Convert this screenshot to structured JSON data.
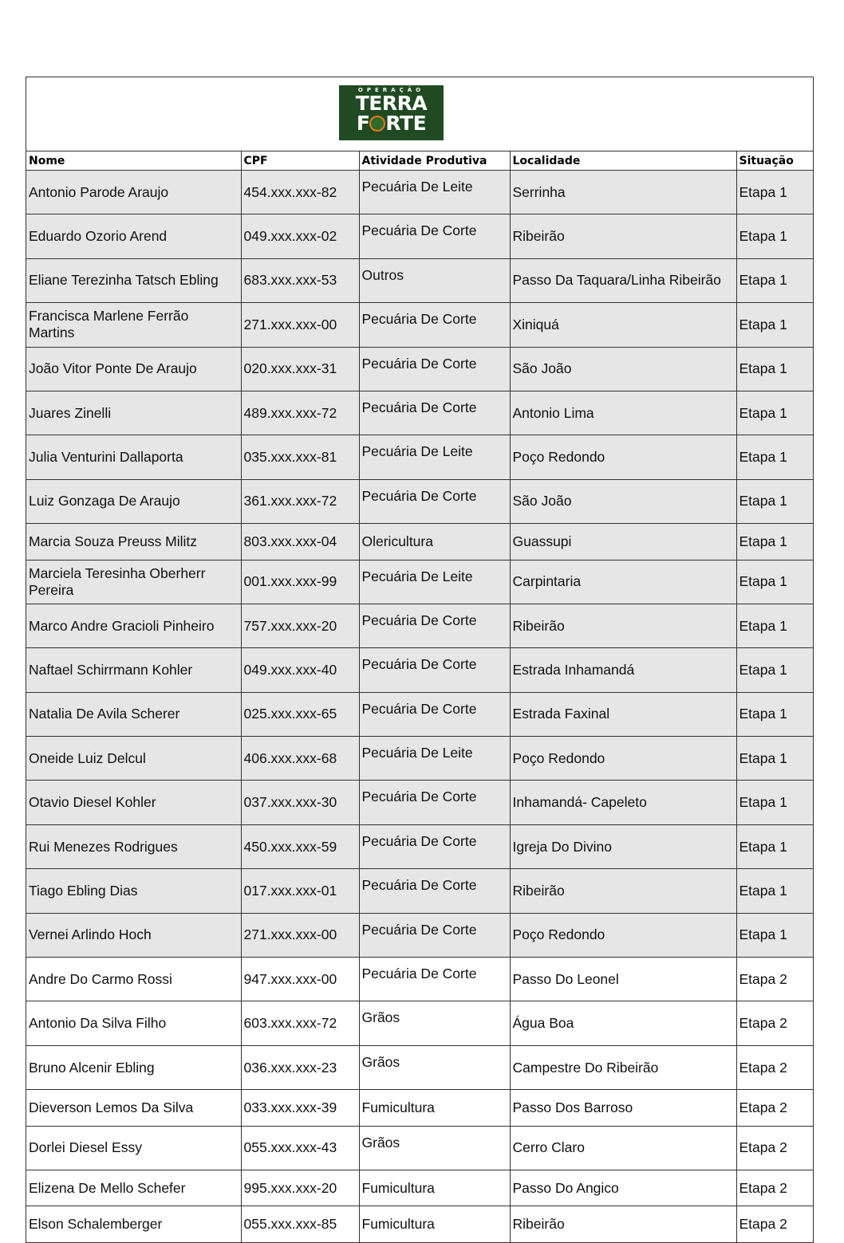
{
  "logo": {
    "line1": "OPERAÇÃO",
    "line2": "TERRA",
    "line3": "FORTE",
    "color": "#1f4a22"
  },
  "table": {
    "headers": [
      "Nome",
      "CPF",
      "Atividade Produtiva",
      "Localidade",
      "Situação"
    ],
    "rows": [
      [
        "Antonio Parode Araujo",
        "454.xxx.xxx-82",
        "Pecuária De Leite",
        "Serrinha",
        "Etapa 1"
      ],
      [
        "Eduardo Ozorio Arend",
        "049.xxx.xxx-02",
        "Pecuária De Corte",
        "Ribeirão",
        "Etapa 1"
      ],
      [
        "Eliane Terezinha Tatsch Ebling",
        "683.xxx.xxx-53",
        "Outros",
        "Passo Da Taquara/Linha Ribeirão",
        "Etapa 1"
      ],
      [
        "Francisca Marlene Ferrão Martins",
        "271.xxx.xxx-00",
        "Pecuária De Corte",
        "Xiniquá",
        "Etapa 1"
      ],
      [
        "João Vitor Ponte De Araujo",
        "020.xxx.xxx-31",
        "Pecuária De Corte",
        "São João",
        "Etapa 1"
      ],
      [
        "Juares Zinelli",
        "489.xxx.xxx-72",
        "Pecuária De Corte",
        "Antonio Lima",
        "Etapa 1"
      ],
      [
        "Julia Venturini Dallaporta",
        "035.xxx.xxx-81",
        "Pecuária De Leite",
        "Poço Redondo",
        "Etapa 1"
      ],
      [
        "Luiz Gonzaga De Araujo",
        "361.xxx.xxx-72",
        "Pecuária De Corte",
        "São João",
        "Etapa 1"
      ],
      [
        "Marcia  Souza Preuss Militz",
        "803.xxx.xxx-04",
        "Olericultura",
        "Guassupi",
        "Etapa 1"
      ],
      [
        "Marciela Teresinha Oberherr Pereira",
        "001.xxx.xxx-99",
        "Pecuária De Leite",
        "Carpintaria",
        "Etapa 1"
      ],
      [
        "Marco Andre Gracioli Pinheiro",
        "757.xxx.xxx-20",
        "Pecuária De Corte",
        "Ribeirão",
        "Etapa 1"
      ],
      [
        "Naftael Schirrmann Kohler",
        "049.xxx.xxx-40",
        "Pecuária De Corte",
        "Estrada Inhamandá",
        "Etapa 1"
      ],
      [
        "Natalia De Avila Scherer",
        "025.xxx.xxx-65",
        "Pecuária De Corte",
        "Estrada Faxinal",
        "Etapa 1"
      ],
      [
        "Oneide Luiz Delcul",
        "406.xxx.xxx-68",
        "Pecuária De Leite",
        "Poço Redondo",
        "Etapa 1"
      ],
      [
        "Otavio Diesel Kohler",
        "037.xxx.xxx-30",
        "Pecuária De Corte",
        "Inhamandá- Capeleto",
        "Etapa 1"
      ],
      [
        "Rui Menezes Rodrigues",
        "450.xxx.xxx-59",
        "Pecuária De Corte",
        "Igreja Do Divino",
        "Etapa 1"
      ],
      [
        "Tiago Ebling Dias",
        "017.xxx.xxx-01",
        "Pecuária De Corte",
        "Ribeirão",
        "Etapa 1"
      ],
      [
        "Vernei Arlindo Hoch",
        "271.xxx.xxx-00",
        "Pecuária De Corte",
        "Poço Redondo",
        "Etapa 1"
      ],
      [
        "Andre Do Carmo Rossi",
        "947.xxx.xxx-00",
        "Pecuária De Corte",
        "Passo Do Leonel",
        "Etapa 2"
      ],
      [
        "Antonio Da Silva Filho",
        "603.xxx.xxx-72",
        "Grãos",
        "Água Boa",
        "Etapa 2"
      ],
      [
        "Bruno Alcenir Ebling",
        "036.xxx.xxx-23",
        "Grãos",
        "Campestre Do Ribeirão",
        "Etapa 2"
      ],
      [
        "Dieverson Lemos Da Silva",
        "033.xxx.xxx-39",
        "Fumicultura",
        "Passo Dos Barroso",
        "Etapa 2"
      ],
      [
        "Dorlei Diesel Essy",
        "055.xxx.xxx-43",
        "Grãos",
        "Cerro Claro",
        "Etapa 2"
      ],
      [
        "Elizena De Mello Schefer",
        "995.xxx.xxx-20",
        "Fumicultura",
        "Passo Do Angico",
        "Etapa 2"
      ],
      [
        "Elson Schalemberger",
        "055.xxx.xxx-85",
        "Fumicultura",
        "Ribeirão",
        "Etapa 2"
      ]
    ]
  },
  "colors": {
    "etapa1_row": "#e6e6e6",
    "etapa2_row": "#ffffff"
  }
}
